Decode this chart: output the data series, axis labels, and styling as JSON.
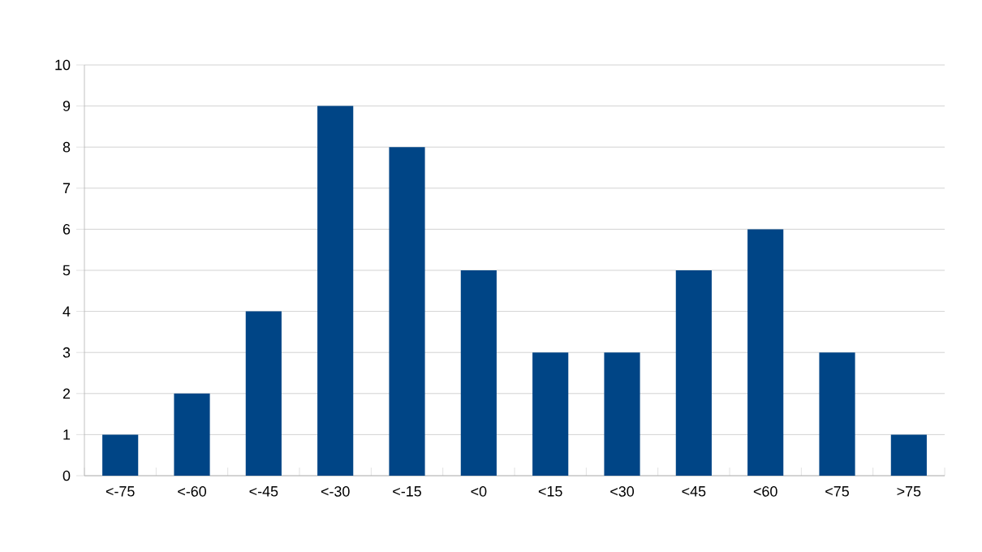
{
  "chart_data": {
    "type": "bar",
    "categories": [
      "<-75",
      "<-60",
      "<-45",
      "<-30",
      "<-15",
      "<0",
      "<15",
      "<30",
      "<45",
      "<60",
      "<75",
      ">75"
    ],
    "values": [
      1,
      2,
      4,
      9,
      8,
      5,
      3,
      3,
      5,
      6,
      3,
      1
    ],
    "color": "#004586",
    "ylim": [
      0,
      10
    ],
    "yticks": [
      0,
      1,
      2,
      3,
      4,
      5,
      6,
      7,
      8,
      9,
      10
    ],
    "grid": "y"
  }
}
